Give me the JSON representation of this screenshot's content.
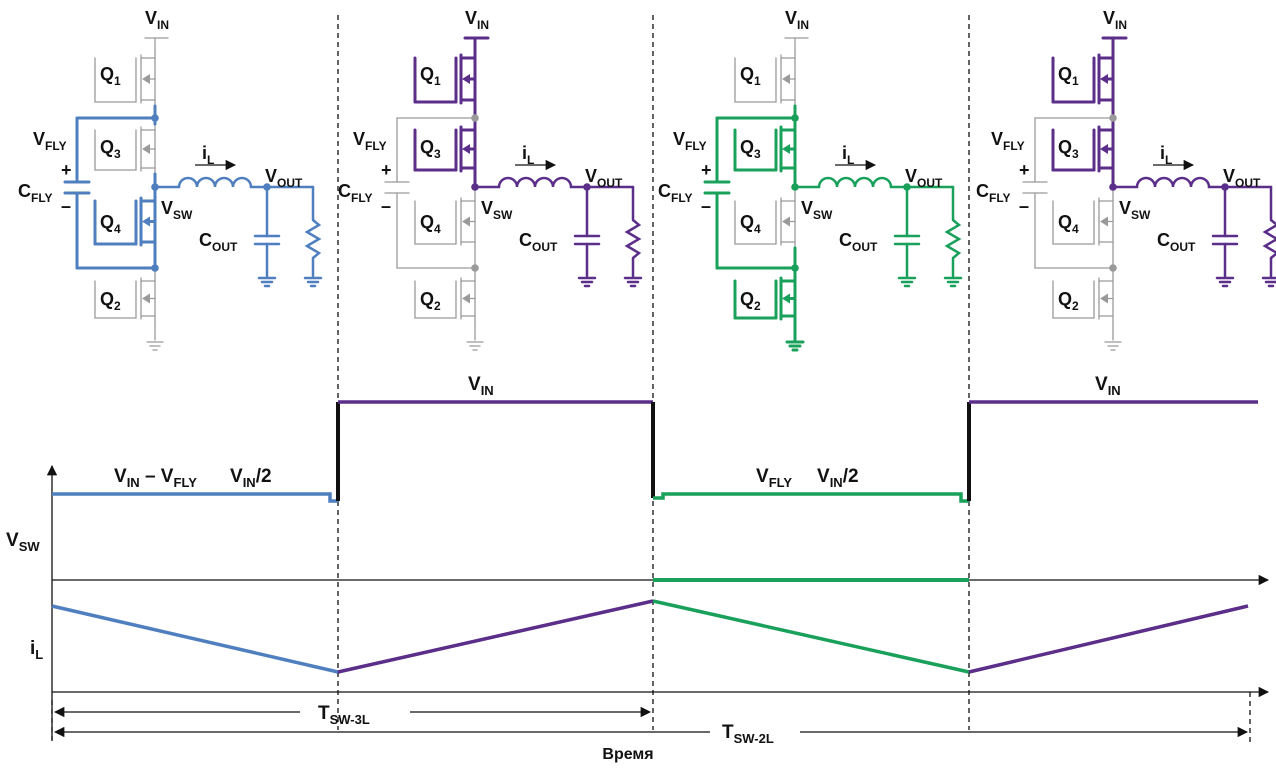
{
  "colors": {
    "phase1": "#4f7fbf",
    "phase2": "#5b2e8a",
    "phase3": "#19a05a",
    "off": "#9a9a9a",
    "ink": "#111111"
  },
  "circuit": {
    "vin": {
      "main": "V",
      "sub": "IN"
    },
    "vfly": {
      "main": "V",
      "sub": "FLY"
    },
    "cfly": {
      "main": "C",
      "sub": "FLY"
    },
    "q1": {
      "main": "Q",
      "sub": "1"
    },
    "q2": {
      "main": "Q",
      "sub": "2"
    },
    "q3": {
      "main": "Q",
      "sub": "3"
    },
    "q4": {
      "main": "Q",
      "sub": "4"
    },
    "il": {
      "main": "i",
      "sub": "L"
    },
    "vout": {
      "main": "V",
      "sub": "OUT"
    },
    "vsw": {
      "main": "V",
      "sub": "SW"
    },
    "cout": {
      "main": "C",
      "sub": "OUT"
    },
    "plus": "+",
    "minus": "–"
  },
  "phases": [
    {
      "name": "phase-1",
      "color_key": "phase1",
      "q1": false,
      "q2": false,
      "q3": false,
      "q4": true,
      "cfly_on": true
    },
    {
      "name": "phase-2",
      "color_key": "phase2",
      "q1": true,
      "q2": false,
      "q3": true,
      "q4": false,
      "cfly_on": false
    },
    {
      "name": "phase-3",
      "color_key": "phase3",
      "q1": false,
      "q2": true,
      "q3": true,
      "q4": false,
      "cfly_on": true
    },
    {
      "name": "phase-4",
      "color_key": "phase2",
      "q1": true,
      "q2": false,
      "q3": true,
      "q4": false,
      "cfly_on": false
    }
  ],
  "waveforms": {
    "vsw_axis": {
      "main": "V",
      "sub": "SW"
    },
    "il_axis": {
      "main": "i",
      "sub": "L"
    },
    "vin_label": {
      "main": "V",
      "sub": "IN"
    },
    "seg1": {
      "a_main": "V",
      "a_sub": "IN",
      "mid": " – V",
      "b_sub": "FLY",
      "c_main": "V",
      "c_sub": "IN",
      "c_tail": "/2"
    },
    "seg3": {
      "a_main": "V",
      "a_sub": "FLY",
      "c_main": "V",
      "c_sub": "IN",
      "c_tail": "/2"
    },
    "tsw3l": {
      "main": "T",
      "sub": "SW-3L"
    },
    "tsw2l": {
      "main": "T",
      "sub": "SW-2L"
    },
    "time_label": "Время"
  }
}
